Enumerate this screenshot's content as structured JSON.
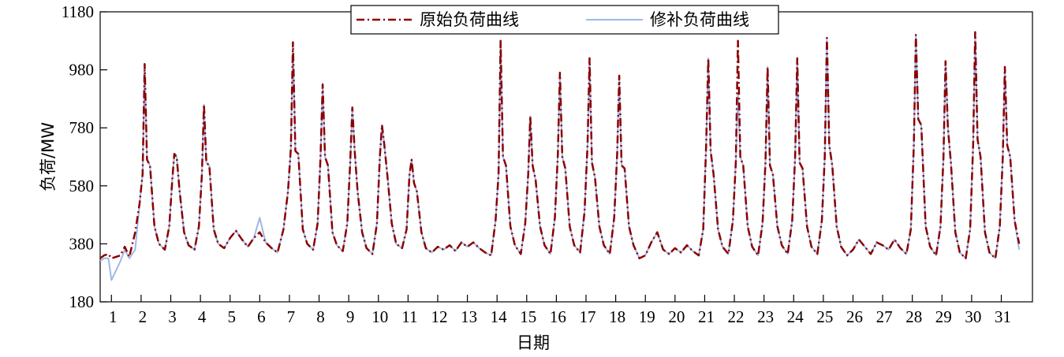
{
  "chart_data": {
    "type": "line",
    "title": "",
    "xlabel": "日期",
    "ylabel": "负荷/MW",
    "ylim": [
      180,
      1180
    ],
    "yticks": [
      180,
      380,
      580,
      780,
      980,
      1180
    ],
    "xlim": [
      0.62,
      32.05
    ],
    "xticks": [
      1,
      2,
      3,
      4,
      5,
      6,
      7,
      8,
      9,
      10,
      11,
      12,
      13,
      14,
      15,
      16,
      17,
      18,
      19,
      20,
      21,
      22,
      23,
      24,
      25,
      26,
      27,
      28,
      29,
      30,
      31
    ],
    "grid": false,
    "legend_position": "top",
    "series": [
      {
        "name": "原始负荷曲线",
        "color": "#8b0000",
        "style": "dash-dot",
        "x": [
          0.62,
          0.75,
          0.9,
          1.0,
          1.3,
          1.45,
          1.6,
          1.8,
          1.95,
          2.05,
          2.12,
          2.2,
          2.3,
          2.45,
          2.6,
          2.8,
          2.95,
          3.05,
          3.12,
          3.2,
          3.3,
          3.45,
          3.6,
          3.8,
          3.95,
          4.05,
          4.12,
          4.2,
          4.3,
          4.45,
          4.6,
          4.8,
          5.0,
          5.2,
          5.4,
          5.6,
          5.8,
          6.0,
          6.2,
          6.4,
          6.6,
          6.8,
          6.95,
          7.05,
          7.12,
          7.2,
          7.3,
          7.45,
          7.6,
          7.8,
          7.95,
          8.05,
          8.12,
          8.2,
          8.3,
          8.45,
          8.6,
          8.8,
          8.95,
          9.05,
          9.12,
          9.2,
          9.3,
          9.45,
          9.6,
          9.8,
          9.95,
          10.05,
          10.12,
          10.2,
          10.3,
          10.45,
          10.6,
          10.8,
          10.95,
          11.05,
          11.12,
          11.2,
          11.3,
          11.45,
          11.6,
          11.8,
          12.0,
          12.2,
          12.4,
          12.6,
          12.8,
          13.0,
          13.2,
          13.4,
          13.6,
          13.8,
          13.95,
          14.05,
          14.12,
          14.2,
          14.3,
          14.45,
          14.6,
          14.8,
          14.95,
          15.05,
          15.12,
          15.2,
          15.3,
          15.45,
          15.6,
          15.8,
          15.95,
          16.05,
          16.12,
          16.2,
          16.3,
          16.45,
          16.6,
          16.8,
          16.95,
          17.05,
          17.12,
          17.2,
          17.3,
          17.45,
          17.6,
          17.8,
          17.95,
          18.05,
          18.12,
          18.2,
          18.3,
          18.45,
          18.6,
          18.8,
          19.0,
          19.2,
          19.4,
          19.6,
          19.8,
          20.0,
          20.2,
          20.4,
          20.6,
          20.8,
          20.95,
          21.05,
          21.12,
          21.2,
          21.3,
          21.45,
          21.6,
          21.8,
          21.95,
          22.05,
          22.12,
          22.2,
          22.3,
          22.45,
          22.6,
          22.8,
          22.95,
          23.05,
          23.12,
          23.2,
          23.3,
          23.45,
          23.6,
          23.8,
          23.95,
          24.05,
          24.12,
          24.2,
          24.3,
          24.45,
          24.6,
          24.8,
          24.95,
          25.05,
          25.12,
          25.2,
          25.3,
          25.45,
          25.6,
          25.8,
          26.0,
          26.2,
          26.4,
          26.6,
          26.8,
          27.0,
          27.2,
          27.4,
          27.6,
          27.8,
          27.95,
          28.05,
          28.12,
          28.2,
          28.3,
          28.45,
          28.6,
          28.8,
          28.95,
          29.05,
          29.12,
          29.2,
          29.3,
          29.45,
          29.6,
          29.8,
          29.95,
          30.05,
          30.12,
          30.2,
          30.3,
          30.45,
          30.6,
          30.8,
          30.95,
          31.05,
          31.12,
          31.2,
          31.3,
          31.45,
          31.6
        ],
        "y": [
          330,
          340,
          345,
          330,
          340,
          370,
          335,
          420,
          520,
          620,
          1000,
          670,
          650,
          440,
          380,
          360,
          440,
          600,
          690,
          680,
          560,
          420,
          375,
          360,
          440,
          620,
          860,
          660,
          650,
          430,
          380,
          365,
          400,
          425,
          395,
          370,
          400,
          420,
          385,
          365,
          350,
          430,
          560,
          710,
          1075,
          700,
          690,
          430,
          380,
          360,
          450,
          680,
          930,
          680,
          650,
          420,
          375,
          355,
          450,
          660,
          850,
          700,
          560,
          420,
          365,
          345,
          450,
          680,
          790,
          720,
          620,
          450,
          380,
          365,
          430,
          620,
          670,
          590,
          560,
          420,
          365,
          350,
          370,
          360,
          375,
          355,
          385,
          370,
          385,
          365,
          350,
          340,
          460,
          620,
          1080,
          680,
          650,
          440,
          375,
          345,
          450,
          620,
          820,
          650,
          600,
          440,
          375,
          345,
          470,
          690,
          970,
          680,
          640,
          440,
          375,
          350,
          490,
          720,
          1020,
          660,
          610,
          440,
          375,
          345,
          470,
          690,
          960,
          650,
          640,
          440,
          375,
          330,
          340,
          385,
          420,
          360,
          345,
          365,
          350,
          375,
          355,
          340,
          430,
          720,
          1020,
          700,
          620,
          430,
          370,
          345,
          460,
          660,
          1080,
          680,
          650,
          440,
          370,
          340,
          450,
          660,
          990,
          650,
          620,
          440,
          375,
          345,
          460,
          680,
          1020,
          660,
          640,
          440,
          370,
          345,
          460,
          680,
          1090,
          720,
          650,
          440,
          370,
          340,
          360,
          395,
          370,
          345,
          385,
          375,
          360,
          395,
          365,
          345,
          430,
          720,
          1100,
          810,
          790,
          440,
          370,
          340,
          440,
          680,
          1010,
          780,
          660,
          420,
          350,
          330,
          430,
          720,
          1110,
          740,
          680,
          420,
          350,
          330,
          440,
          680,
          990,
          720,
          680,
          460,
          380
        ]
      },
      {
        "name": "修补负荷曲线",
        "color": "#9fb8e6",
        "style": "solid",
        "x": [
          0.62,
          0.75,
          0.9,
          1.0,
          1.3,
          1.45,
          1.6,
          1.8,
          1.95,
          2.05,
          2.12,
          2.2,
          2.3,
          2.45,
          2.6,
          2.8,
          2.95,
          3.05,
          3.12,
          3.2,
          3.3,
          3.45,
          3.6,
          3.8,
          3.95,
          4.05,
          4.12,
          4.2,
          4.3,
          4.45,
          4.6,
          4.8,
          5.0,
          5.2,
          5.4,
          5.6,
          5.8,
          6.0,
          6.2,
          6.4,
          6.6,
          6.8,
          6.95,
          7.05,
          7.12,
          7.2,
          7.3,
          7.45,
          7.6,
          7.8,
          7.95,
          8.05,
          8.12,
          8.2,
          8.3,
          8.45,
          8.6,
          8.8,
          8.95,
          9.05,
          9.12,
          9.2,
          9.3,
          9.45,
          9.6,
          9.8,
          9.95,
          10.05,
          10.12,
          10.2,
          10.3,
          10.45,
          10.6,
          10.8,
          10.95,
          11.05,
          11.12,
          11.2,
          11.3,
          11.45,
          11.6,
          11.8,
          12.0,
          12.2,
          12.4,
          12.6,
          12.8,
          13.0,
          13.2,
          13.4,
          13.6,
          13.8,
          13.95,
          14.05,
          14.12,
          14.2,
          14.3,
          14.45,
          14.6,
          14.8,
          14.95,
          15.05,
          15.12,
          15.2,
          15.3,
          15.45,
          15.6,
          15.8,
          15.95,
          16.05,
          16.12,
          16.2,
          16.3,
          16.45,
          16.6,
          16.8,
          16.95,
          17.05,
          17.12,
          17.2,
          17.3,
          17.45,
          17.6,
          17.8,
          17.95,
          18.05,
          18.12,
          18.2,
          18.3,
          18.45,
          18.6,
          18.8,
          19.0,
          19.2,
          19.4,
          19.6,
          19.8,
          20.0,
          20.2,
          20.4,
          20.6,
          20.8,
          20.95,
          21.05,
          21.12,
          21.2,
          21.3,
          21.45,
          21.6,
          21.8,
          21.95,
          22.05,
          22.12,
          22.2,
          22.3,
          22.45,
          22.6,
          22.8,
          22.95,
          23.05,
          23.12,
          23.2,
          23.3,
          23.45,
          23.6,
          23.8,
          23.95,
          24.05,
          24.12,
          24.2,
          24.3,
          24.45,
          24.6,
          24.8,
          24.95,
          25.05,
          25.12,
          25.2,
          25.3,
          25.45,
          25.6,
          25.8,
          26.0,
          26.2,
          26.4,
          26.6,
          26.8,
          27.0,
          27.2,
          27.4,
          27.6,
          27.8,
          27.95,
          28.05,
          28.12,
          28.2,
          28.3,
          28.45,
          28.6,
          28.8,
          28.95,
          29.05,
          29.12,
          29.2,
          29.3,
          29.45,
          29.6,
          29.8,
          29.95,
          30.05,
          30.12,
          30.2,
          30.3,
          30.45,
          30.6,
          30.8,
          30.95,
          31.05,
          31.12,
          31.2,
          31.3,
          31.45,
          31.6
        ],
        "y": [
          320,
          330,
          330,
          255,
          320,
          360,
          330,
          360,
          520,
          620,
          1000,
          670,
          650,
          440,
          380,
          360,
          440,
          600,
          690,
          680,
          560,
          420,
          375,
          360,
          440,
          620,
          860,
          660,
          650,
          430,
          380,
          365,
          400,
          425,
          395,
          370,
          400,
          470,
          385,
          365,
          350,
          430,
          560,
          710,
          1075,
          700,
          690,
          430,
          380,
          360,
          450,
          680,
          930,
          680,
          650,
          420,
          375,
          355,
          450,
          660,
          850,
          700,
          560,
          420,
          365,
          345,
          450,
          680,
          790,
          720,
          620,
          450,
          380,
          365,
          430,
          620,
          670,
          590,
          560,
          420,
          365,
          350,
          370,
          360,
          375,
          355,
          385,
          370,
          385,
          365,
          350,
          340,
          460,
          620,
          1080,
          680,
          650,
          440,
          375,
          345,
          450,
          620,
          820,
          650,
          600,
          440,
          375,
          345,
          470,
          690,
          970,
          680,
          640,
          440,
          375,
          350,
          490,
          720,
          1020,
          660,
          610,
          440,
          375,
          345,
          470,
          690,
          960,
          650,
          640,
          440,
          375,
          330,
          340,
          385,
          420,
          360,
          345,
          365,
          350,
          375,
          355,
          340,
          430,
          720,
          1020,
          700,
          620,
          430,
          370,
          345,
          460,
          660,
          900,
          680,
          650,
          440,
          370,
          340,
          450,
          660,
          990,
          650,
          620,
          440,
          375,
          345,
          460,
          680,
          1020,
          660,
          640,
          440,
          370,
          345,
          460,
          680,
          1090,
          720,
          650,
          440,
          370,
          340,
          360,
          395,
          370,
          345,
          385,
          375,
          360,
          395,
          365,
          345,
          430,
          720,
          1100,
          810,
          790,
          440,
          370,
          340,
          440,
          680,
          1010,
          780,
          660,
          420,
          350,
          330,
          430,
          720,
          1110,
          740,
          680,
          420,
          350,
          330,
          440,
          680,
          990,
          720,
          680,
          460,
          360
        ]
      }
    ]
  }
}
